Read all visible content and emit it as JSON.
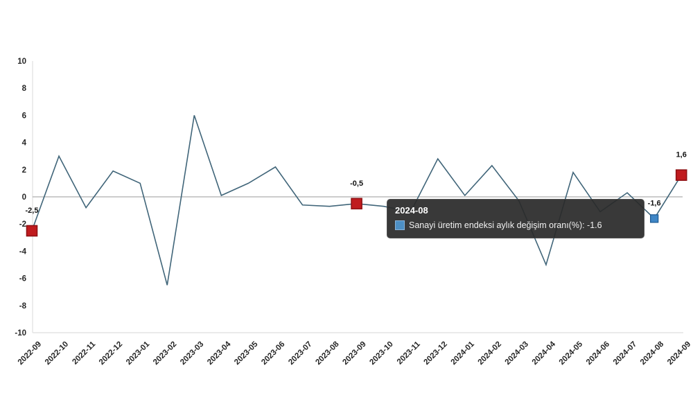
{
  "chart_data": {
    "type": "line",
    "title": "",
    "xlabel": "",
    "ylabel": "",
    "ylim": [
      -10,
      10
    ],
    "ytick_step": 2,
    "y_ticks": [
      10,
      8,
      6,
      4,
      2,
      0,
      -2,
      -4,
      -6,
      -8,
      -10
    ],
    "grid": "zero-line-only",
    "legend_position": "none",
    "x": [
      "2022-09",
      "2022-10",
      "2022-11",
      "2022-12",
      "2023-01",
      "2023-02",
      "2023-03",
      "2023-04",
      "2023-05",
      "2023-06",
      "2023-07",
      "2023-08",
      "2023-09",
      "2023-10",
      "2023-11",
      "2023-12",
      "2024-01",
      "2024-02",
      "2024-03",
      "2024-04",
      "2024-05",
      "2024-06",
      "2024-07",
      "2024-08",
      "2024-09"
    ],
    "series": [
      {
        "name": "Sanayi üretim endeksi aylık değişim oranı(%)",
        "values": [
          -2.5,
          3.0,
          -0.8,
          1.9,
          1.0,
          -6.5,
          6.0,
          0.1,
          1.0,
          2.2,
          -0.6,
          -0.7,
          -0.5,
          -0.7,
          -1.1,
          2.8,
          0.1,
          2.3,
          -0.3,
          -5.0,
          1.8,
          -1.1,
          0.3,
          -1.6,
          1.6
        ]
      }
    ],
    "labeled_points": [
      {
        "month": "2022-09",
        "value": -2.5,
        "label": "-2,5",
        "marker": "red"
      },
      {
        "month": "2023-09",
        "value": -0.5,
        "label": "-0,5",
        "marker": "red"
      },
      {
        "month": "2024-08",
        "value": -1.6,
        "label": "-1,6",
        "marker": "blue"
      },
      {
        "month": "2024-09",
        "value": 1.6,
        "label": "1,6",
        "marker": "red"
      }
    ],
    "colors": {
      "line": "#406579",
      "red_marker": "#c01b1e",
      "red_marker_border": "#8f1114",
      "blue_marker": "#3f86c6",
      "blue_marker_border": "#1f5d96",
      "zero_line": "#9a9a9a",
      "axis_border": "#e4e4e4",
      "tick_text": "#262626"
    }
  },
  "tooltip": {
    "title": "2024-08",
    "series_label": "Sanayi üretim endeksi aylık değişim oranı(%)",
    "value": "-1.6",
    "text": "Sanayi üretim endeksi aylık değişim oranı(%): -1.6"
  }
}
